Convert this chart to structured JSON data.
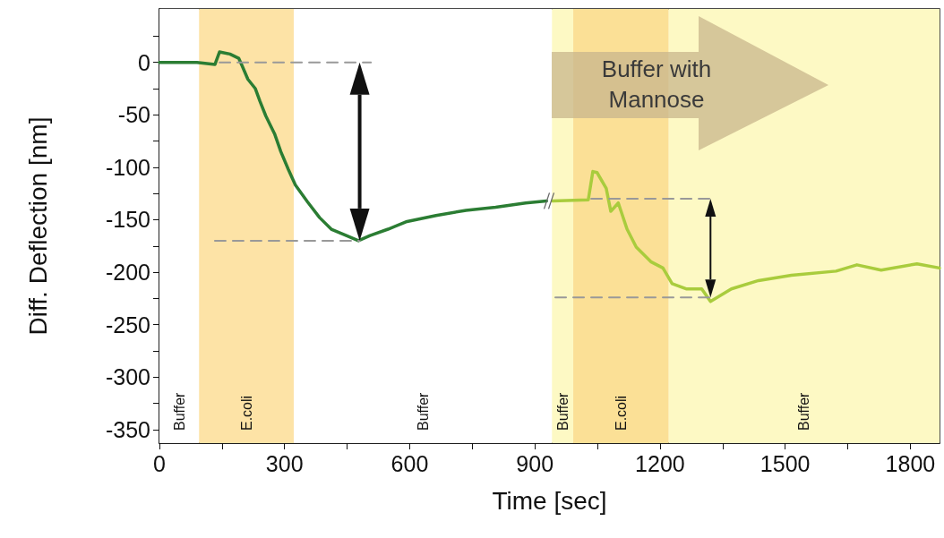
{
  "chart_data": {
    "type": "line",
    "xlabel": "Time [sec]",
    "ylabel": "Diff. Deflection [nm]",
    "annotations": [
      "Buffer with Mannose"
    ],
    "xlim": [
      0,
      1870
    ],
    "xticks": [
      0,
      {
        "value": 150,
        "label": null
      },
      300,
      {
        "value": 450,
        "label": null
      },
      600,
      {
        "value": 750,
        "label": null
      },
      900,
      {
        "value": 1050,
        "label": null
      },
      1200,
      {
        "value": 1350,
        "label": null
      },
      1500,
      {
        "value": 1650,
        "label": null
      },
      1800
    ],
    "ylim": [
      -363,
      51
    ],
    "yticks": [
      {
        "value": 25,
        "label": null
      },
      0,
      {
        "value": -25,
        "label": null
      },
      -50,
      {
        "value": -75,
        "label": null
      },
      -100,
      {
        "value": -125,
        "label": null
      },
      -150,
      {
        "value": -175,
        "label": null
      },
      -200,
      {
        "value": -225,
        "label": null
      },
      -250,
      {
        "value": -275,
        "label": null
      },
      -300,
      {
        "value": -325,
        "label": null
      },
      -350
    ],
    "grid": false,
    "marker": "none",
    "bands": [
      {
        "axis": "x",
        "from": 0,
        "to": 95,
        "label": "Buffer",
        "color": "#ffffff"
      },
      {
        "axis": "x",
        "from": 95,
        "to": 322,
        "label": "E.coli",
        "color": "#fde3a6"
      },
      {
        "axis": "x",
        "from": 322,
        "to": 941,
        "label": "Buffer",
        "color": "#ffffff"
      },
      {
        "axis": "x",
        "from": 941,
        "to": 992,
        "label": "Buffer",
        "color": "#fdf9c4"
      },
      {
        "axis": "x",
        "from": 992,
        "to": 1221,
        "label": "E.coli",
        "color": "#fbe096"
      },
      {
        "axis": "x",
        "from": 1221,
        "to": 1870,
        "label": "Buffer",
        "color": "#fdf9c4"
      }
    ],
    "series": [
      {
        "color": "#2b7d33",
        "x": [
          0,
          90,
          133,
          144,
          169,
          190,
          198,
          212,
          230,
          241,
          255,
          276,
          291,
          309,
          326,
          355,
          384,
          412,
          448,
          477,
          505,
          548,
          591,
          663,
          735,
          806,
          878,
          928
        ],
        "values": [
          0,
          0,
          -2,
          10,
          8,
          4,
          -3,
          -16,
          -25,
          -37,
          -51,
          -68,
          -85,
          -102,
          -117,
          -133,
          -148,
          -159,
          -165,
          -170,
          -165,
          -159,
          -152,
          -146,
          -141,
          -138,
          -134,
          -132
        ]
      },
      {
        "color": "#a9cc3d",
        "x": [
          942,
          1028,
          1039,
          1049,
          1071,
          1082,
          1100,
          1121,
          1143,
          1178,
          1207,
          1229,
          1264,
          1300,
          1321,
          1371,
          1436,
          1515,
          1622,
          1672,
          1730,
          1816,
          1870
        ],
        "values": [
          -132,
          -131,
          -104,
          -105,
          -120,
          -142,
          -134,
          -159,
          -176,
          -190,
          -196,
          -211,
          -216,
          -216,
          -228,
          -216,
          -208,
          -203,
          -199,
          -193,
          -198,
          -192,
          -196
        ]
      },
      {
        "color": "#999999",
        "line_style": "dashed",
        "x": [
          144,
          507
        ],
        "values": [
          0,
          0
        ]
      },
      {
        "color": "#999999",
        "line_style": "dashed",
        "x": [
          133,
          480
        ],
        "values": [
          -170,
          -170
        ]
      },
      {
        "color": "#999999",
        "line_style": "dashed",
        "x": [
          1035,
          1321
        ],
        "values": [
          -130,
          -130
        ]
      },
      {
        "color": "#999999",
        "line_style": "dashed",
        "x": [
          949,
          1321
        ],
        "values": [
          -224,
          -224
        ]
      }
    ]
  }
}
